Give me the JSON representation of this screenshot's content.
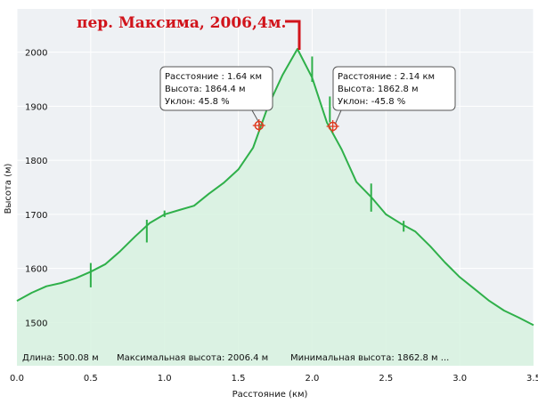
{
  "title": "пер. Максима, 2006,4м.",
  "colors": {
    "plot_background": "#eef1f4",
    "grid": "#ffffff",
    "line": "#2fb04a",
    "fill": "#d7f2df",
    "title": "#d1141b",
    "marker": "#e03a1e"
  },
  "footer": {
    "length": "Длина: 500.08 м",
    "max_height": "Максимальная высота: 2006.4 м",
    "min_height": "Минимальная высота: 1862.8 м ..."
  },
  "callouts": [
    {
      "distance": "Расстояние : 1.64 км",
      "height": "Высота: 1864.4 м",
      "slope": "Уклон: 45.8 %"
    },
    {
      "distance": "Расстояние : 2.14 км",
      "height": "Высота: 1862.8 м",
      "slope": "Уклон: -45.8 %"
    }
  ],
  "chart_data": {
    "type": "area",
    "xlabel": "Расстояние (км)",
    "ylabel": "Высота (м)",
    "xlim": [
      0,
      3.5
    ],
    "ylim": [
      1420,
      2080
    ],
    "x_ticks": [
      0,
      0.5,
      1.0,
      1.5,
      2.0,
      2.5,
      3.0,
      3.5
    ],
    "x_tick_labels": [
      "0.0",
      "0.5",
      "1.0",
      "1.5",
      "2.0",
      "2.5",
      "3.0",
      "3.5"
    ],
    "y_ticks": [
      1500,
      1600,
      1700,
      1800,
      1900,
      2000
    ],
    "y_tick_labels": [
      "1500",
      "1600",
      "1700",
      "1800",
      "1900",
      "2000"
    ],
    "grid": true,
    "series": [
      {
        "x": [
          0,
          0.1,
          0.2,
          0.3,
          0.4,
          0.5,
          0.6,
          0.7,
          0.8,
          0.9,
          1.0,
          1.1,
          1.2,
          1.3,
          1.4,
          1.5,
          1.6,
          1.7,
          1.8,
          1.9,
          2.0,
          2.1,
          2.2,
          2.3,
          2.4,
          2.5,
          2.6,
          2.7,
          2.8,
          2.9,
          3.0,
          3.1,
          3.2,
          3.3,
          3.4,
          3.5
        ],
        "y": [
          1540,
          1555,
          1567,
          1573,
          1582,
          1594,
          1608,
          1632,
          1659,
          1684,
          1700,
          1708,
          1716,
          1738,
          1758,
          1783,
          1823,
          1899,
          1958,
          2006,
          1953,
          1870,
          1820,
          1760,
          1732,
          1700,
          1683,
          1668,
          1641,
          1611,
          1584,
          1562,
          1540,
          1522,
          1509,
          1495
        ]
      }
    ],
    "markers": [
      {
        "x": 1.64,
        "y": 1864.4
      },
      {
        "x": 2.14,
        "y": 1862.8
      }
    ],
    "spikes": [
      {
        "x": 0.5,
        "y1": 1565,
        "y2": 1610
      },
      {
        "x": 0.88,
        "y1": 1648,
        "y2": 1690
      },
      {
        "x": 1.0,
        "y1": 1695,
        "y2": 1707
      },
      {
        "x": 2.0,
        "y1": 1945,
        "y2": 1992
      },
      {
        "x": 2.12,
        "y1": 1870,
        "y2": 1918
      },
      {
        "x": 2.4,
        "y1": 1705,
        "y2": 1757
      },
      {
        "x": 2.62,
        "y1": 1668,
        "y2": 1688
      }
    ]
  }
}
